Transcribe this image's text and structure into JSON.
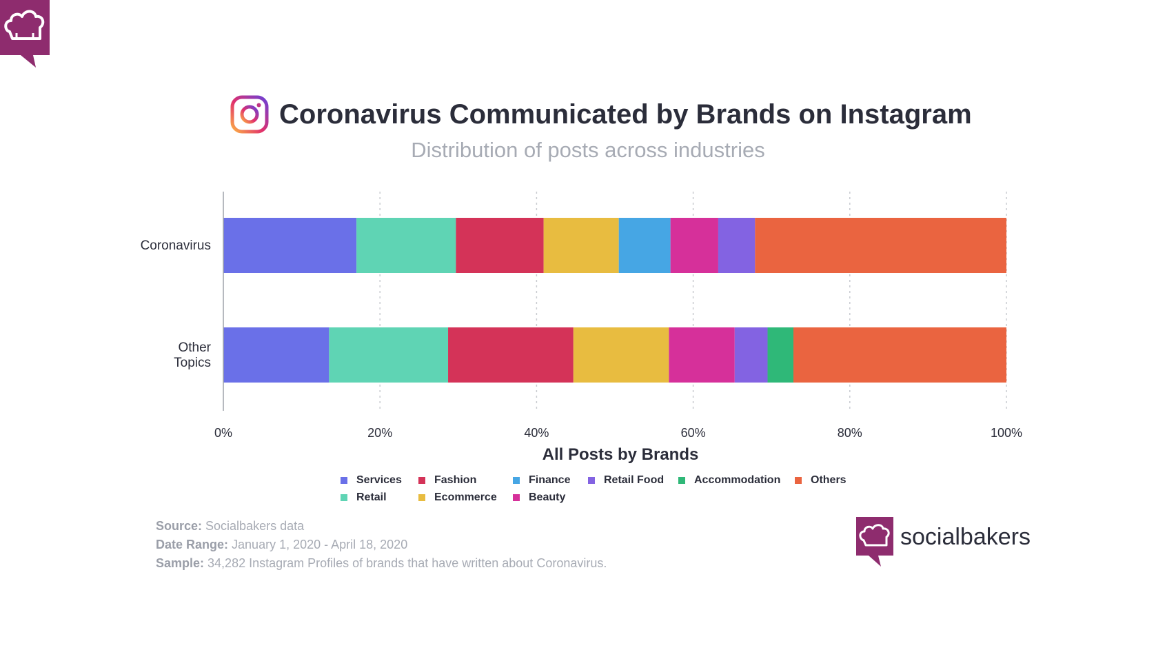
{
  "header": {
    "title": "Coronavirus Communicated by Brands on Instagram",
    "subtitle": "Distribution of posts across industries"
  },
  "icons": {
    "corner": "chef-hat-icon",
    "instagram": "instagram-icon",
    "brand": "chef-hat-icon"
  },
  "colors": {
    "brand_purple": "#8e2c6e",
    "text_dark": "#2b2d3a",
    "text_muted": "#a7abb4",
    "grid": "#c8cbd0"
  },
  "chart_data": {
    "type": "bar",
    "orientation": "horizontal",
    "stacked": true,
    "categories": [
      "Coronavirus",
      "Other Topics"
    ],
    "xlabel": "All Posts by Brands",
    "xlim": [
      0,
      100
    ],
    "x_ticks": [
      "0%",
      "20%",
      "40%",
      "60%",
      "80%",
      "100%"
    ],
    "grid": true,
    "legend_position": "bottom",
    "series": [
      {
        "name": "Services",
        "color": "#6a70e8",
        "values": [
          17,
          13.5
        ]
      },
      {
        "name": "Retail",
        "color": "#5fd4b4",
        "values": [
          12.7,
          15.2
        ]
      },
      {
        "name": "Fashion",
        "color": "#d43358",
        "values": [
          11.2,
          16
        ]
      },
      {
        "name": "Ecommerce",
        "color": "#e8bc40",
        "values": [
          9.6,
          12.2
        ]
      },
      {
        "name": "Finance",
        "color": "#46a6e4",
        "values": [
          6.6,
          0
        ]
      },
      {
        "name": "Beauty",
        "color": "#d6309a",
        "values": [
          6.1,
          8.4
        ]
      },
      {
        "name": "Retail Food",
        "color": "#8363e2",
        "values": [
          4.7,
          4.2
        ]
      },
      {
        "name": "Accommodation",
        "color": "#2fb878",
        "values": [
          0,
          3.3
        ]
      },
      {
        "name": "Others",
        "color": "#ea6440",
        "values": [
          32.1,
          27.2
        ]
      }
    ]
  },
  "legend_order": [
    "Services",
    "Fashion",
    "Finance",
    "Retail Food",
    "Accommodation",
    "Others",
    "Retail",
    "Ecommerce",
    "Beauty"
  ],
  "notes": {
    "source_label": "Source:",
    "source_value": " Socialbakers data",
    "date_label": "Date Range:",
    "date_value": " January 1, 2020 - April 18, 2020",
    "sample_label": "Sample:",
    "sample_value": " 34,282 Instagram Profiles of brands that have written about Coronavirus."
  },
  "brand": {
    "name": "socialbakers"
  }
}
